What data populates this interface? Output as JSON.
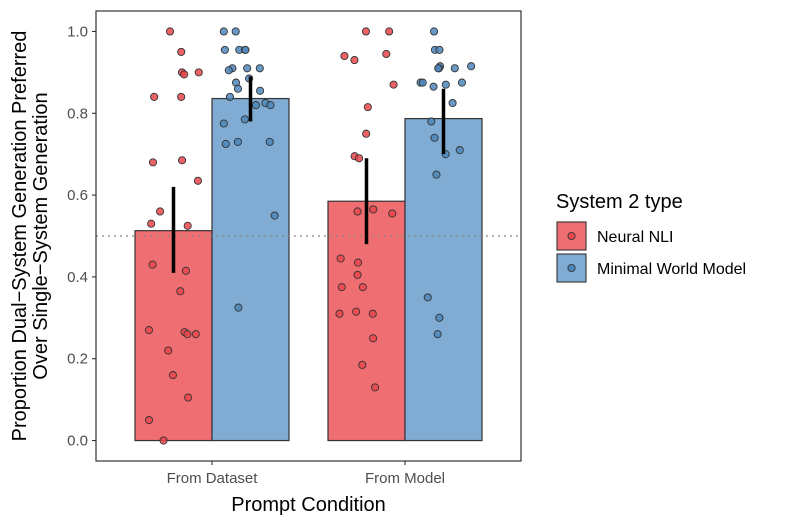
{
  "chart_data": {
    "type": "bar",
    "xlabel": "Prompt Condition",
    "ylabel_lines": [
      "Proportion Dual−System Generation Preferred",
      "Over Single−System Generation"
    ],
    "categories": [
      "From Dataset",
      "From Model"
    ],
    "ylim": [
      -0.05,
      1.05
    ],
    "yticks": [
      0.0,
      0.2,
      0.4,
      0.6,
      0.8,
      1.0
    ],
    "ytick_labels": [
      "0.0",
      "0.2",
      "0.4",
      "0.6",
      "0.8",
      "1.0"
    ],
    "reference_line": 0.5,
    "grid": false,
    "legend": {
      "title": "System 2 type",
      "position": "right"
    },
    "series": [
      {
        "name": "Neural NLI",
        "color": "#ee6e71",
        "point_color": "#e8474b",
        "values": [
          0.513,
          0.585
        ],
        "error": [
          [
            0.41,
            0.62
          ],
          [
            0.48,
            0.69
          ]
        ],
        "points": [
          [
            1.0,
            0.95,
            0.9,
            0.9,
            0.895,
            0.84,
            0.84,
            0.685,
            0.68,
            0.635,
            0.56,
            0.53,
            0.525,
            0.43,
            0.415,
            0.365,
            0.27,
            0.265,
            0.26,
            0.26,
            0.22,
            0.16,
            0.105,
            0.05,
            0.0
          ],
          [
            1.0,
            1.0,
            0.945,
            0.94,
            0.93,
            0.87,
            0.815,
            0.75,
            0.695,
            0.69,
            0.565,
            0.56,
            0.555,
            0.445,
            0.435,
            0.405,
            0.375,
            0.375,
            0.315,
            0.31,
            0.31,
            0.25,
            0.185,
            0.13
          ]
        ]
      },
      {
        "name": "Minimal World Model",
        "color": "#80abd2",
        "point_color": "#4e86bb",
        "values": [
          0.836,
          0.787
        ],
        "error": [
          [
            0.78,
            0.89
          ],
          [
            0.7,
            0.86
          ]
        ],
        "points": [
          [
            1.0,
            1.0,
            0.955,
            0.955,
            0.955,
            0.955,
            0.91,
            0.91,
            0.91,
            0.905,
            0.885,
            0.875,
            0.86,
            0.855,
            0.84,
            0.825,
            0.82,
            0.82,
            0.785,
            0.775,
            0.73,
            0.73,
            0.725,
            0.55,
            0.325
          ],
          [
            1.0,
            0.955,
            0.955,
            0.915,
            0.915,
            0.91,
            0.91,
            0.91,
            0.875,
            0.875,
            0.875,
            0.87,
            0.865,
            0.825,
            0.78,
            0.74,
            0.71,
            0.7,
            0.65,
            0.35,
            0.3,
            0.26
          ]
        ]
      }
    ]
  }
}
